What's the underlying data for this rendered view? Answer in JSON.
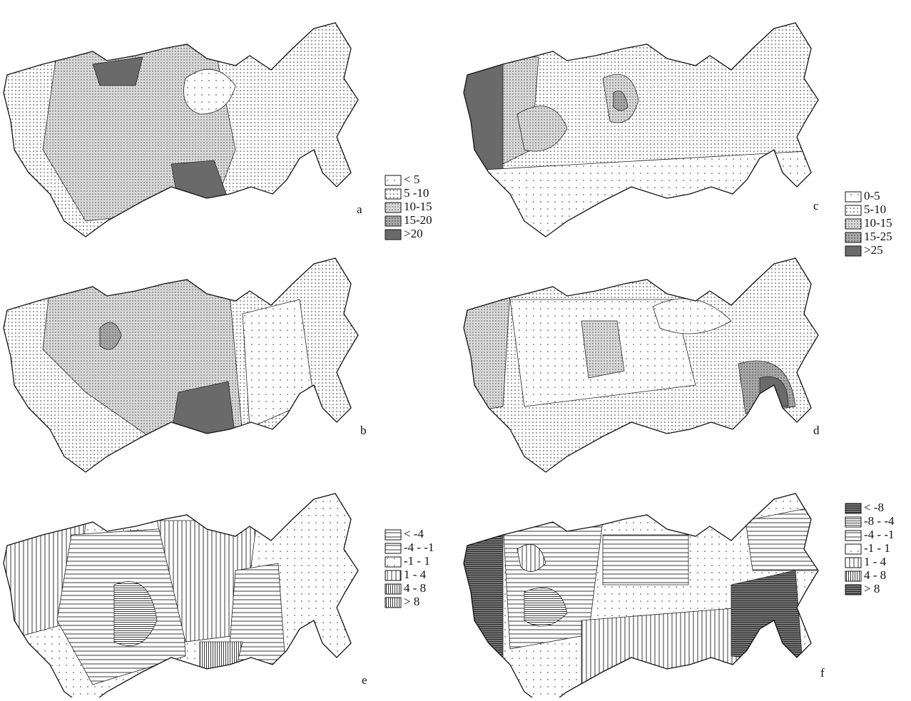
{
  "panels": [
    {
      "label": "a"
    },
    {
      "label": "b"
    },
    {
      "label": "c"
    },
    {
      "label": "d"
    },
    {
      "label": "e"
    },
    {
      "label": "f"
    }
  ],
  "legends": [
    {
      "entries": [
        "< 5",
        "5 -10",
        "10-15",
        "15-20",
        ">20"
      ]
    },
    {
      "entries": [
        "0-5",
        "5-10",
        "10-15",
        "15-25",
        ">25"
      ]
    },
    {
      "entries": [
        "< -4",
        "-4 - -1",
        "-1 - 1",
        "1 - 4",
        "4 - 8",
        "> 8"
      ]
    },
    {
      "entries": [
        "< -8",
        "-8 - -4",
        "-4 - -1",
        "-1 - 1",
        "1 - 4",
        "4 - 8",
        "> 8"
      ]
    }
  ]
}
